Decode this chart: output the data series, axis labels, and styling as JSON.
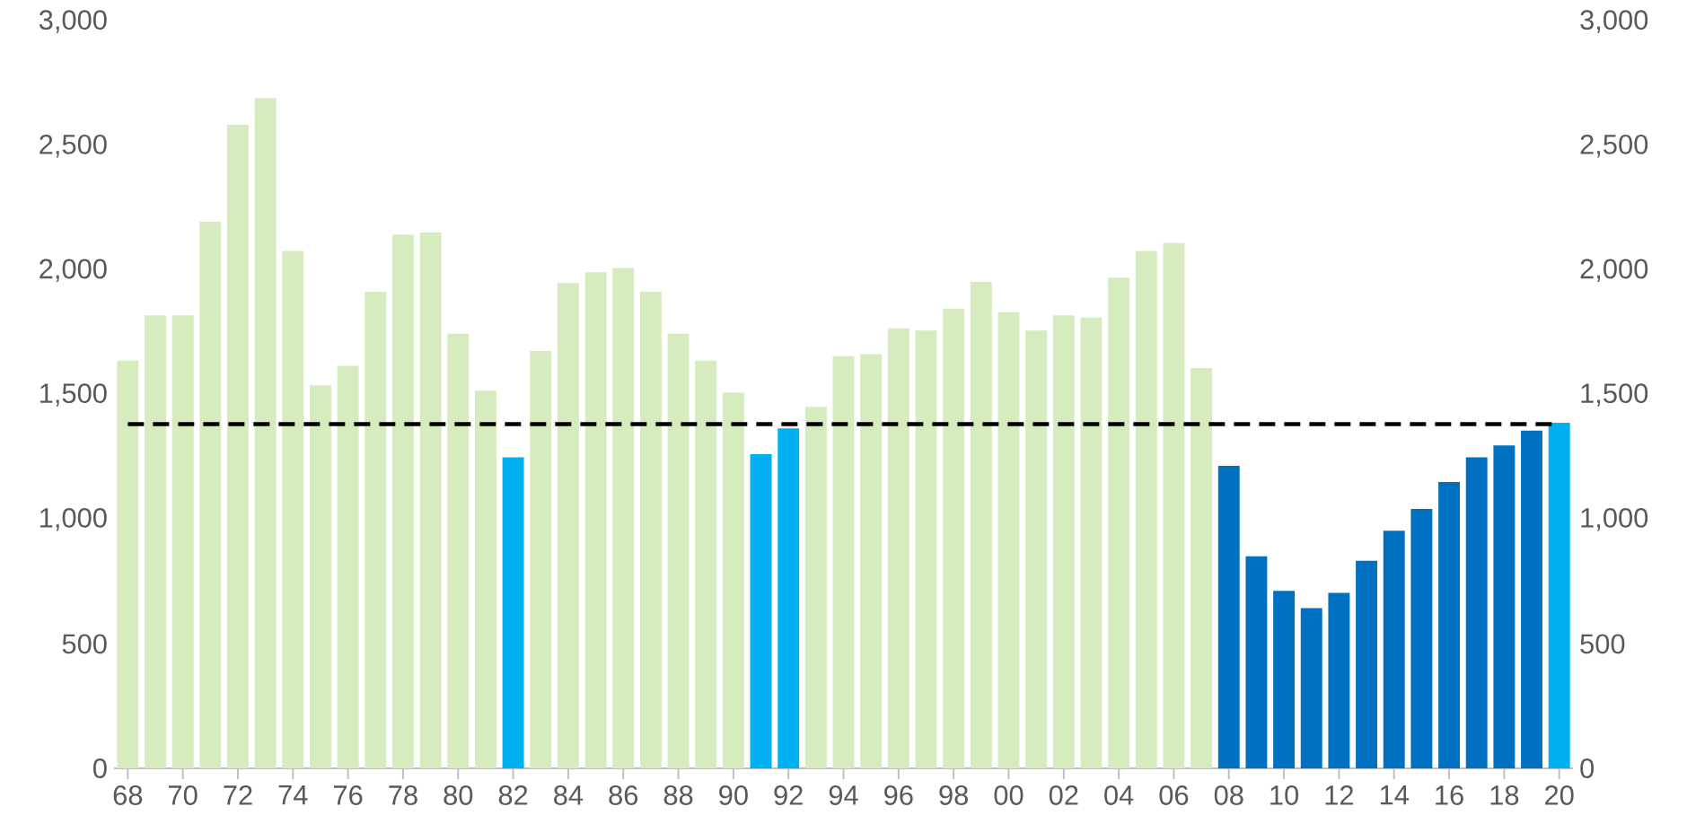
{
  "chart_data": {
    "type": "bar",
    "categories": [
      "68",
      null,
      "70",
      null,
      "72",
      null,
      "74",
      null,
      "76",
      null,
      "78",
      null,
      "80",
      null,
      "82",
      null,
      "84",
      null,
      "86",
      null,
      "88",
      null,
      "90",
      null,
      "92",
      null,
      "94",
      null,
      "96",
      null,
      "98",
      null,
      "00",
      null,
      "02",
      null,
      "04",
      null,
      "06",
      null,
      "08",
      null,
      "10",
      null,
      "12",
      null,
      "14",
      null,
      "16",
      null,
      "18",
      null,
      "20"
    ],
    "values": [
      1638,
      1820,
      1820,
      2196,
      2585,
      2693,
      2079,
      1539,
      1617,
      1915,
      2144,
      2153,
      1746,
      1517,
      1249,
      1677,
      1950,
      1993,
      2010,
      1915,
      1746,
      1638,
      1509,
      1262,
      1366,
      1452,
      1656,
      1664,
      1768,
      1759,
      1846,
      1954,
      1833,
      1759,
      1820,
      1811,
      1971,
      2079,
      2110,
      1608,
      1215,
      852,
      713,
      644,
      705,
      834,
      955,
      1042,
      1150,
      1249,
      1297,
      1357,
      1388
    ],
    "colors": [
      "#d6ecbf",
      "#d6ecbf",
      "#d6ecbf",
      "#d6ecbf",
      "#d6ecbf",
      "#d6ecbf",
      "#d6ecbf",
      "#d6ecbf",
      "#d6ecbf",
      "#d6ecbf",
      "#d6ecbf",
      "#d6ecbf",
      "#d6ecbf",
      "#d6ecbf",
      "#00b0f0",
      "#d6ecbf",
      "#d6ecbf",
      "#d6ecbf",
      "#d6ecbf",
      "#d6ecbf",
      "#d6ecbf",
      "#d6ecbf",
      "#d6ecbf",
      "#00b0f0",
      "#00b0f0",
      "#d6ecbf",
      "#d6ecbf",
      "#d6ecbf",
      "#d6ecbf",
      "#d6ecbf",
      "#d6ecbf",
      "#d6ecbf",
      "#d6ecbf",
      "#d6ecbf",
      "#d6ecbf",
      "#d6ecbf",
      "#d6ecbf",
      "#d6ecbf",
      "#d6ecbf",
      "#d6ecbf",
      "#0070c0",
      "#0070c0",
      "#0070c0",
      "#0070c0",
      "#0070c0",
      "#0070c0",
      "#0070c0",
      "#0070c0",
      "#0070c0",
      "#0070c0",
      "#0070c0",
      "#0070c0",
      "#00b0f0"
    ],
    "ylim": [
      0,
      3000
    ],
    "yticks": [
      0,
      500,
      {
        "value": 1000,
        "label": "1,000"
      },
      {
        "value": 1500,
        "label": "1,500"
      },
      {
        "value": 2000,
        "label": "2,000"
      },
      {
        "value": 2500,
        "label": "2,500"
      },
      {
        "value": 3000,
        "label": "3,000"
      }
    ],
    "y2lim": [
      0,
      3000
    ],
    "y2ticks": [
      0,
      500,
      {
        "value": 1000,
        "label": "1,000"
      },
      {
        "value": 1500,
        "label": "1,500"
      },
      {
        "value": 2000,
        "label": "2,000"
      },
      {
        "value": 2500,
        "label": "2,500"
      },
      {
        "value": 3000,
        "label": "3,000"
      }
    ],
    "ref_lines": [
      {
        "axis": "y",
        "value": 1383,
        "color": "#000000",
        "line_style": "dashed"
      }
    ],
    "grid": false
  }
}
